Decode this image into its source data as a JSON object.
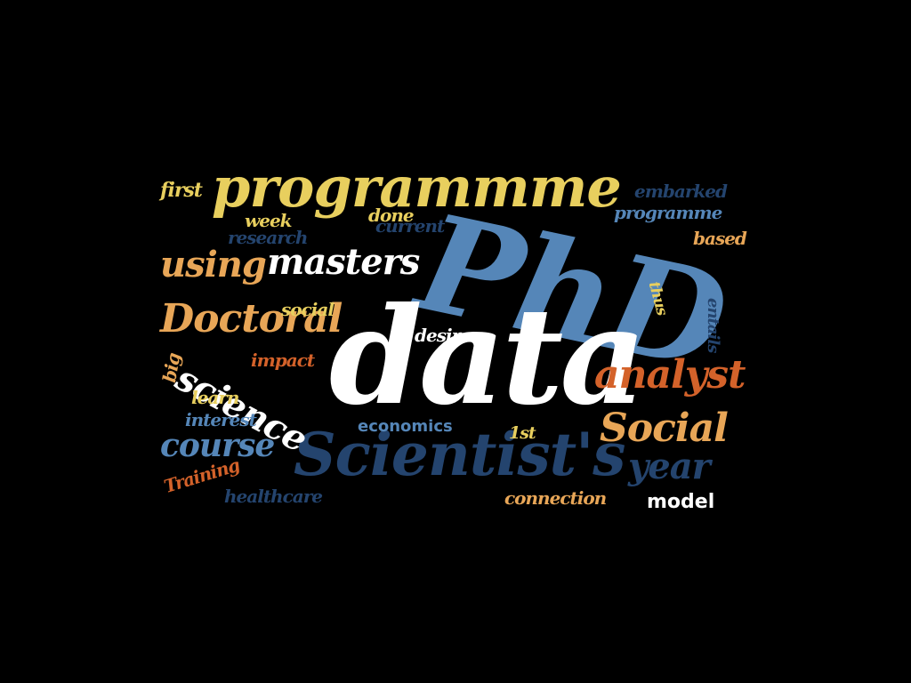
{
  "background_color": "#000000",
  "palette": {
    "yellow": "#E8CF5E",
    "orange": "#E8A657",
    "rust": "#D4622A",
    "light_blue": "#5586B8",
    "navy": "#24446E",
    "white": "#FFFFFF"
  },
  "words": {
    "data": "data",
    "phd": "PhD",
    "programmme": "programmme",
    "scientists": "Scientist's",
    "masters": "masters",
    "using": "using",
    "doctoral": "Doctoral",
    "science": "science",
    "analyst": "analyst",
    "social_big": "Social",
    "course": "course",
    "year": "year",
    "first": "first",
    "week": "week",
    "research": "research",
    "done": "done",
    "current": "current",
    "embarked": "embarked",
    "programme": "programme",
    "based": "based",
    "thus": "thus",
    "entails": "entails",
    "social_small": "social",
    "desire": "desire",
    "impact": "impact",
    "big": "big",
    "learn": "learn",
    "interest": "interest",
    "economics": "economics",
    "first_ordinal": "1st",
    "training": "Training",
    "healthcare": "healthcare",
    "connection": "connection",
    "model": "model"
  }
}
